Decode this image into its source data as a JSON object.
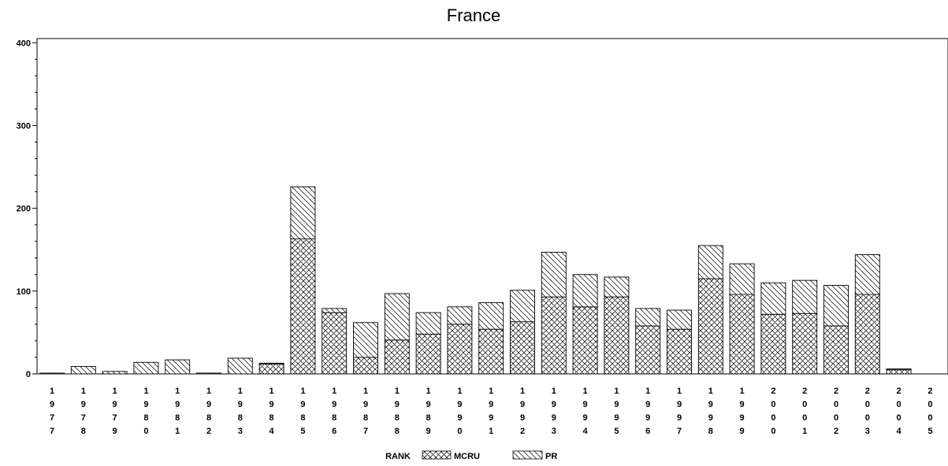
{
  "chart_data": {
    "type": "bar",
    "stacked": true,
    "title": "France",
    "xlabel": "",
    "ylabel": "",
    "ylim": [
      0,
      405
    ],
    "yticks": [
      0,
      100,
      200,
      300,
      400
    ],
    "categories": [
      "1977",
      "1978",
      "1979",
      "1980",
      "1981",
      "1982",
      "1983",
      "1984",
      "1985",
      "1986",
      "1987",
      "1988",
      "1989",
      "1990",
      "1991",
      "1992",
      "1993",
      "1994",
      "1995",
      "1996",
      "1997",
      "1998",
      "1999",
      "2000",
      "2001",
      "2002",
      "2003",
      "2004",
      "2005"
    ],
    "series": [
      {
        "name": "MCRU",
        "pattern": "crosshatch",
        "values": [
          0,
          0,
          0,
          0,
          0,
          0,
          0,
          12,
          163,
          74,
          20,
          41,
          48,
          60,
          54,
          63,
          93,
          81,
          93,
          58,
          54,
          115,
          96,
          72,
          73,
          58,
          96,
          5,
          0
        ]
      },
      {
        "name": "PR",
        "pattern": "diagonal",
        "values": [
          1,
          9,
          3,
          14,
          17,
          1,
          19,
          1,
          63,
          5,
          42,
          56,
          26,
          21,
          32,
          38,
          54,
          39,
          24,
          21,
          23,
          40,
          37,
          38,
          40,
          49,
          48,
          1,
          0
        ]
      }
    ],
    "legend": {
      "title": "RANK",
      "position": "bottom-center"
    },
    "grid": false
  }
}
